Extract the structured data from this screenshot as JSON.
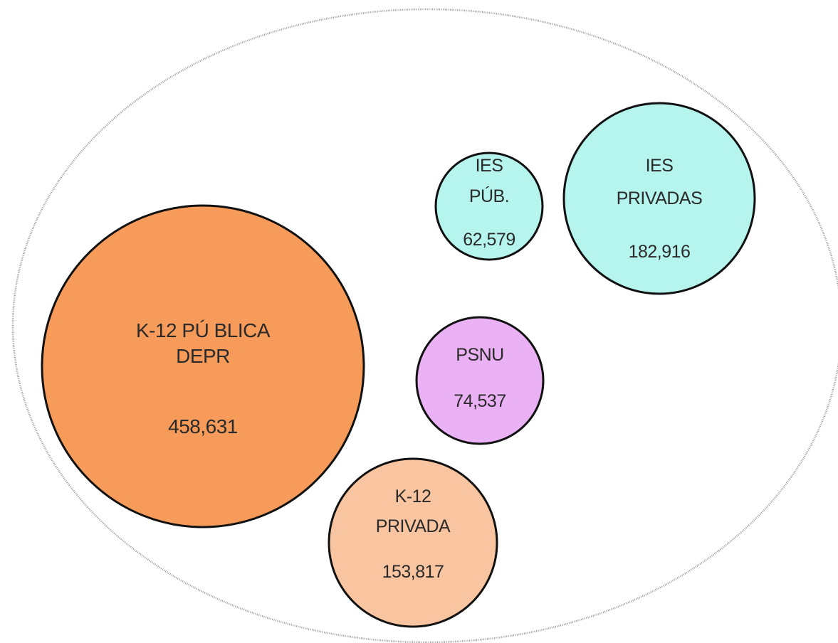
{
  "colors": {
    "background": "#ffffff",
    "outer_ellipse_stroke": "#9a9a9a",
    "bubble_stroke": "#111111",
    "text": "#2a2a2a"
  },
  "bubbles": [
    {
      "id": "k12-publica",
      "label_lines": [
        "K-12 PÚ BLICA",
        "DEPR"
      ],
      "value": "458,631",
      "fill": "#f79b5a"
    },
    {
      "id": "k12-privada",
      "label_lines": [
        "K-12",
        "PRIVADA"
      ],
      "value": "153,817",
      "fill": "#f9c5a0"
    },
    {
      "id": "psnu",
      "label_lines": [
        "PSNU"
      ],
      "value": "74,537",
      "fill": "#eab1f4"
    },
    {
      "id": "ies-pub",
      "label_lines": [
        "IES",
        "PÚB."
      ],
      "value": "62,579",
      "fill": "#b6f4ee"
    },
    {
      "id": "ies-privadas",
      "label_lines": [
        "IES",
        "PRIVADAS"
      ],
      "value": "182,916",
      "fill": "#b6f4ee"
    }
  ]
}
